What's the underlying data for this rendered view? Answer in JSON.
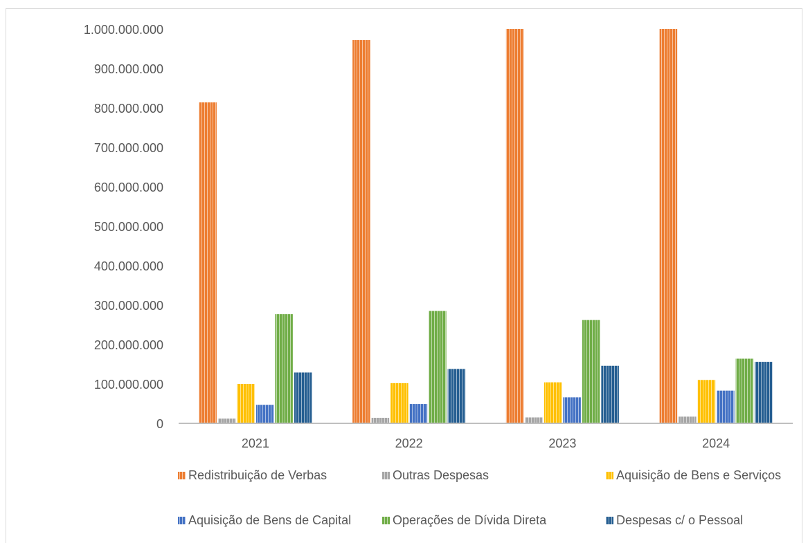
{
  "chart_data": {
    "type": "bar",
    "title": "",
    "xlabel": "",
    "ylabel": "",
    "categories": [
      "2021",
      "2022",
      "2023",
      "2024"
    ],
    "ylim": [
      0,
      1000000000
    ],
    "yticks": [
      0,
      100000000,
      200000000,
      300000000,
      400000000,
      500000000,
      600000000,
      700000000,
      800000000,
      900000000,
      1000000000
    ],
    "ytick_labels": [
      "0",
      "100.000.000",
      "200.000.000",
      "300.000.000",
      "400.000.000",
      "500.000.000",
      "600.000.000",
      "700.000.000",
      "800.000.000",
      "900.000.000",
      "1.000.000.000"
    ],
    "grid": false,
    "legend_position": "bottom",
    "series": [
      {
        "name": "Redistribuição de Verbas",
        "color": "#ed7d31",
        "values": [
          814000000,
          972000000,
          1000000000,
          1000000000
        ]
      },
      {
        "name": "Outras Despesas",
        "color": "#a5a5a5",
        "values": [
          12000000,
          14000000,
          15000000,
          17000000
        ]
      },
      {
        "name": "Aquisição de Bens e Serviços",
        "color": "#ffc000",
        "values": [
          100000000,
          102000000,
          104000000,
          110000000
        ]
      },
      {
        "name": "Aquisição de Bens de Capital",
        "color": "#4472c4",
        "values": [
          47000000,
          49000000,
          66000000,
          83000000
        ]
      },
      {
        "name": "Operações de Dívida Direta",
        "color": "#70ad47",
        "values": [
          277000000,
          285000000,
          262000000,
          164000000
        ]
      },
      {
        "name": "Despesas c/ o Pessoal",
        "color": "#255e91",
        "values": [
          129000000,
          138000000,
          146000000,
          156000000
        ]
      }
    ]
  }
}
